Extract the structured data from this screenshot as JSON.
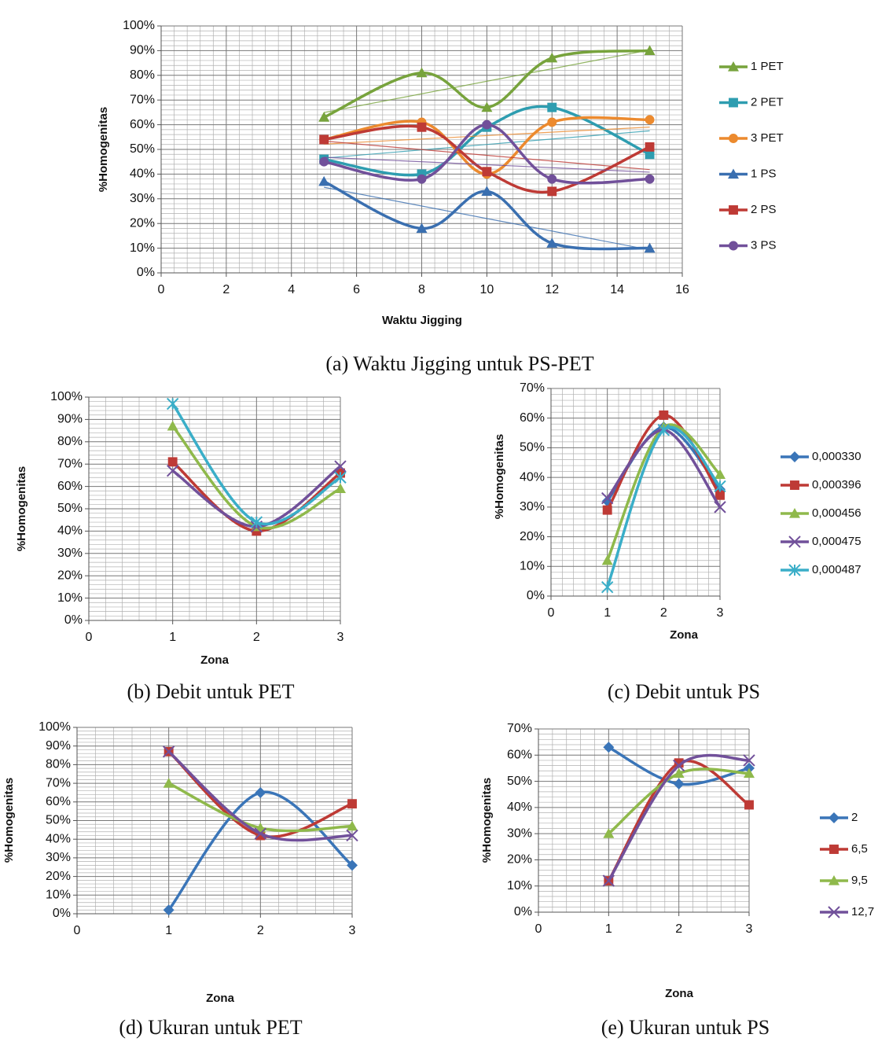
{
  "chart_data": [
    {
      "type": "line",
      "title": "(a) Waktu Jigging untuk PS-PET",
      "xlabel": "Waktu Jigging",
      "ylabel": "%Homogenitas",
      "x": [
        5,
        8,
        10,
        12,
        15
      ],
      "xlim": [
        0,
        16
      ],
      "xticks": [
        0,
        2,
        4,
        6,
        8,
        10,
        12,
        14,
        16
      ],
      "ylim": [
        0,
        100
      ],
      "yticks": [
        {
          "value": 0,
          "label": "0%"
        },
        {
          "value": 10,
          "label": "10%"
        },
        {
          "value": 20,
          "label": "20%"
        },
        {
          "value": 30,
          "label": "30%"
        },
        {
          "value": 40,
          "label": "40%"
        },
        {
          "value": 50,
          "label": "50%"
        },
        {
          "value": 60,
          "label": "60%"
        },
        {
          "value": 70,
          "label": "70%"
        },
        {
          "value": 80,
          "label": "80%"
        },
        {
          "value": 90,
          "label": "90%"
        },
        {
          "value": 100,
          "label": "100%"
        }
      ],
      "grid": true,
      "minor_grid": true,
      "smooth": true,
      "trendline": true,
      "legend": "right",
      "series": [
        {
          "name": "1 PET",
          "color": "#77a33c",
          "marker": "triangle",
          "values": [
            63,
            81,
            67,
            87,
            90
          ]
        },
        {
          "name": "2 PET",
          "color": "#2e9db0",
          "marker": "square",
          "values": [
            46,
            40,
            59,
            67,
            48
          ]
        },
        {
          "name": "3 PET",
          "color": "#ec8a2e",
          "marker": "circle",
          "values": [
            54,
            61,
            40,
            61,
            62
          ]
        },
        {
          "name": "1 PS",
          "color": "#3a6fb0",
          "marker": "triangle",
          "values": [
            37,
            18,
            33,
            12,
            10
          ]
        },
        {
          "name": "2 PS",
          "color": "#be3a35",
          "marker": "square",
          "values": [
            54,
            59,
            41,
            33,
            51
          ]
        },
        {
          "name": "3 PS",
          "color": "#71509a",
          "marker": "circle",
          "values": [
            45,
            38,
            60,
            38,
            38
          ]
        }
      ]
    },
    {
      "type": "line",
      "title": "(b) Debit untuk PET",
      "xlabel": "Zona",
      "ylabel": "%Homogenitas",
      "x": [
        1,
        2,
        3
      ],
      "xlim": [
        0,
        3
      ],
      "xticks": [
        0,
        1,
        2,
        3
      ],
      "ylim": [
        0,
        100
      ],
      "yticks": [
        {
          "value": 0,
          "label": "0%"
        },
        {
          "value": 10,
          "label": "10%"
        },
        {
          "value": 20,
          "label": "20%"
        },
        {
          "value": 30,
          "label": "30%"
        },
        {
          "value": 40,
          "label": "40%"
        },
        {
          "value": 50,
          "label": "50%"
        },
        {
          "value": 60,
          "label": "60%"
        },
        {
          "value": 70,
          "label": "70%"
        },
        {
          "value": 80,
          "label": "80%"
        },
        {
          "value": 90,
          "label": "90%"
        },
        {
          "value": 100,
          "label": "100%"
        }
      ],
      "grid": true,
      "minor_grid": true,
      "smooth": true,
      "series": [
        {
          "color": "#be3a35",
          "marker": "square",
          "values": [
            71,
            40,
            66
          ]
        },
        {
          "color": "#8fb94b",
          "marker": "triangle",
          "values": [
            87,
            42,
            59
          ]
        },
        {
          "color": "#71509a",
          "marker": "x",
          "values": [
            67,
            42,
            69
          ]
        },
        {
          "color": "#3aaec8",
          "marker": "star",
          "values": [
            97,
            44,
            64
          ]
        }
      ]
    },
    {
      "type": "line",
      "title": "(c) Debit untuk PS",
      "xlabel": "Zona",
      "ylabel": "%Homogenitas",
      "x": [
        1,
        2,
        3
      ],
      "xlim": [
        0,
        3
      ],
      "xticks": [
        0,
        1,
        2,
        3
      ],
      "ylim": [
        0,
        70
      ],
      "yticks": [
        {
          "value": 0,
          "label": "0%"
        },
        {
          "value": 10,
          "label": "10%"
        },
        {
          "value": 20,
          "label": "20%"
        },
        {
          "value": 30,
          "label": "30%"
        },
        {
          "value": 40,
          "label": "40%"
        },
        {
          "value": 50,
          "label": "50%"
        },
        {
          "value": 60,
          "label": "60%"
        },
        {
          "value": 70,
          "label": "70%"
        }
      ],
      "grid": true,
      "minor_grid": true,
      "smooth": true,
      "legend": "right",
      "series": [
        {
          "name": "0,000330",
          "color": "#3a75b8",
          "marker": "diamond",
          "values": [
            32,
            57,
            36
          ]
        },
        {
          "name": "0,000396",
          "color": "#be3a35",
          "marker": "square",
          "values": [
            29,
            61,
            34
          ]
        },
        {
          "name": "0,000456",
          "color": "#8fb94b",
          "marker": "triangle",
          "values": [
            12,
            57,
            41
          ]
        },
        {
          "name": "0,000475",
          "color": "#71509a",
          "marker": "x",
          "values": [
            33,
            56,
            30
          ]
        },
        {
          "name": "0,000487",
          "color": "#3aaec8",
          "marker": "star",
          "values": [
            3,
            56,
            37
          ]
        }
      ]
    },
    {
      "type": "line",
      "title": "(d) Ukuran untuk PET",
      "xlabel": "Zona",
      "ylabel": "%Homogenitas",
      "x": [
        1,
        2,
        3
      ],
      "xlim": [
        0,
        3
      ],
      "xticks": [
        0,
        1,
        2,
        3
      ],
      "ylim": [
        0,
        100
      ],
      "yticks": [
        {
          "value": 0,
          "label": "0%"
        },
        {
          "value": 10,
          "label": "10%"
        },
        {
          "value": 20,
          "label": "20%"
        },
        {
          "value": 30,
          "label": "30%"
        },
        {
          "value": 40,
          "label": "40%"
        },
        {
          "value": 50,
          "label": "50%"
        },
        {
          "value": 60,
          "label": "60%"
        },
        {
          "value": 70,
          "label": "70%"
        },
        {
          "value": 80,
          "label": "80%"
        },
        {
          "value": 90,
          "label": "90%"
        },
        {
          "value": 100,
          "label": "100%"
        }
      ],
      "grid": true,
      "minor_grid": true,
      "smooth": true,
      "series": [
        {
          "color": "#3a75b8",
          "marker": "diamond",
          "values": [
            2,
            65,
            26
          ]
        },
        {
          "color": "#be3a35",
          "marker": "square",
          "values": [
            87,
            42,
            59
          ]
        },
        {
          "color": "#8fb94b",
          "marker": "triangle",
          "values": [
            70,
            46,
            47
          ]
        },
        {
          "color": "#71509a",
          "marker": "x",
          "values": [
            87,
            43,
            42
          ]
        }
      ]
    },
    {
      "type": "line",
      "title": "(e) Ukuran untuk PS",
      "xlabel": "Zona",
      "ylabel": "%Homogenitas",
      "x": [
        1,
        2,
        3
      ],
      "xlim": [
        0,
        3
      ],
      "xticks": [
        0,
        1,
        2,
        3
      ],
      "ylim": [
        0,
        70
      ],
      "yticks": [
        {
          "value": 0,
          "label": "0%"
        },
        {
          "value": 10,
          "label": "10%"
        },
        {
          "value": 20,
          "label": "20%"
        },
        {
          "value": 30,
          "label": "30%"
        },
        {
          "value": 40,
          "label": "40%"
        },
        {
          "value": 50,
          "label": "50%"
        },
        {
          "value": 60,
          "label": "60%"
        },
        {
          "value": 70,
          "label": "70%"
        }
      ],
      "grid": true,
      "minor_grid": true,
      "smooth": true,
      "legend": "right",
      "series": [
        {
          "name": "2",
          "color": "#3a75b8",
          "marker": "diamond",
          "values": [
            63,
            49,
            55
          ]
        },
        {
          "name": "6,5",
          "color": "#be3a35",
          "marker": "square",
          "values": [
            12,
            57,
            41
          ]
        },
        {
          "name": "9,5",
          "color": "#8fb94b",
          "marker": "triangle",
          "values": [
            30,
            53,
            53
          ]
        },
        {
          "name": "12,7",
          "color": "#71509a",
          "marker": "x",
          "values": [
            12,
            56,
            58
          ]
        }
      ]
    }
  ]
}
